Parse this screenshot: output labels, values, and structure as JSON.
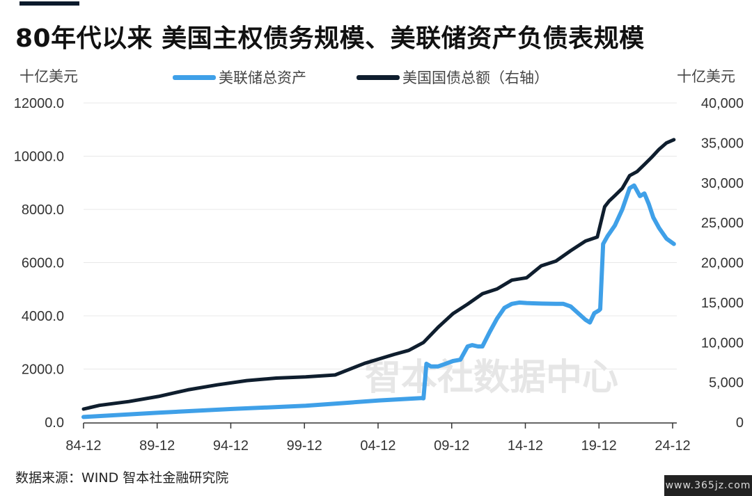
{
  "title": "80年代以来 美国主权债务规模、美联储资产负债表规模",
  "unit_left": "十亿美元",
  "unit_right": "十亿美元",
  "source": "数据来源：WIND 智本社金融研究院",
  "watermark": "智本社数据中心",
  "site_badge": "www.365jz.com",
  "colors": {
    "fed": "#3fa0e8",
    "debt": "#0f1e2e",
    "grid": "#e8e8e8",
    "axis": "#333333"
  },
  "chart_data": {
    "type": "line",
    "xlabel": "",
    "ylabel": "十亿美元",
    "y2label": "十亿美元",
    "x_ticks": [
      "84-12",
      "89-12",
      "94-12",
      "99-12",
      "04-12",
      "09-12",
      "14-12",
      "19-12",
      "24-12"
    ],
    "xlim": [
      1984.92,
      2025.2
    ],
    "ylim": [
      0,
      12000
    ],
    "y2lim": [
      0,
      40000
    ],
    "y_ticks": [
      "0.0",
      "2000.0",
      "4000.0",
      "6000.0",
      "8000.0",
      "10000.0",
      "12000.0"
    ],
    "y2_ticks": [
      "0",
      "5,000",
      "10,000",
      "15,000",
      "20,000",
      "25,000",
      "30,000",
      "35,000",
      "40,000"
    ],
    "legend": "top-center",
    "grid": "horizontal",
    "series": [
      {
        "name": "美联储总资产",
        "axis": "left",
        "x": [
          1984.92,
          1990,
          1995,
          2000,
          2002.5,
          2003,
          2005,
          2007,
          2007.85,
          2008.0,
          2008.2,
          2008.5,
          2009,
          2009.5,
          2010,
          2010.5,
          2011,
          2011.3,
          2011.7,
          2012,
          2012.5,
          2013,
          2013.5,
          2014,
          2014.5,
          2015,
          2016,
          2017,
          2017.5,
          2018,
          2018.5,
          2019,
          2019.3,
          2019.6,
          2019.9,
          2020.0,
          2020.2,
          2020.5,
          2021,
          2021.5,
          2022,
          2022.3,
          2022.5,
          2022.7,
          2023,
          2023.3,
          2023.6,
          2024,
          2024.5,
          2025.0
        ],
        "y": [
          200,
          360,
          500,
          620,
          720,
          740,
          820,
          880,
          910,
          900,
          2200,
          2100,
          2100,
          2200,
          2300,
          2350,
          2850,
          2900,
          2850,
          2850,
          3400,
          3900,
          4300,
          4450,
          4500,
          4480,
          4460,
          4450,
          4450,
          4350,
          4100,
          3850,
          3750,
          4100,
          4200,
          4250,
          6700,
          7000,
          7400,
          8000,
          8800,
          8900,
          8700,
          8500,
          8600,
          8200,
          7700,
          7300,
          6900,
          6700
        ]
      },
      {
        "name": "美国国债总额（右轴）",
        "axis": "right",
        "x": [
          1984.92,
          1986,
          1988,
          1990,
          1992,
          1994,
          1996,
          1998,
          2000,
          2002,
          2004,
          2006,
          2007,
          2008,
          2009,
          2010,
          2011,
          2012,
          2013,
          2014,
          2015,
          2016,
          2017,
          2018,
          2019,
          2019.8,
          2020.3,
          2020.6,
          2021,
          2021.5,
          2022,
          2022.5,
          2023,
          2023.5,
          2024,
          2024.5,
          2025.0
        ],
        "y": [
          1660,
          2120,
          2600,
          3230,
          4060,
          4690,
          5220,
          5530,
          5680,
          5930,
          7380,
          8500,
          9000,
          10000,
          11900,
          13600,
          14800,
          16100,
          16700,
          17800,
          18100,
          19600,
          20200,
          21500,
          22700,
          23200,
          27000,
          27700,
          28400,
          29300,
          30900,
          31400,
          32300,
          33200,
          34200,
          35000,
          35400
        ]
      }
    ]
  }
}
